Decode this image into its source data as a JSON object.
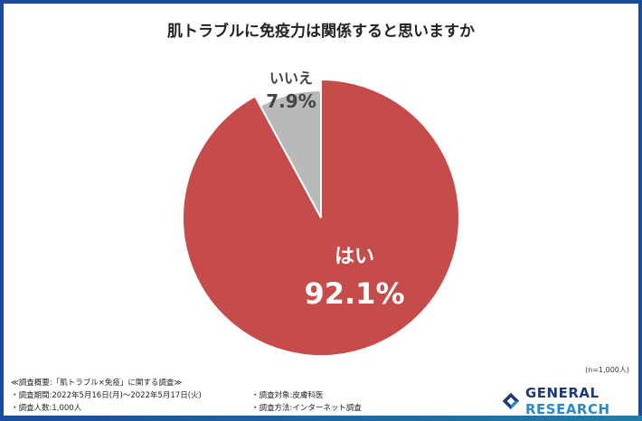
{
  "title": "肌トラブルに免疫力は関係すると思いますか",
  "chart_data": {
    "type": "pie",
    "title": "肌トラブルに免疫力は関係すると思いますか",
    "slices": [
      {
        "label": "はい",
        "value": 92.1,
        "display": "92.1%",
        "color": "#c64b4b"
      },
      {
        "label": "いいえ",
        "value": 7.9,
        "display": "7.9%",
        "color": "#b9b9b9"
      }
    ],
    "start": "top, clockwise",
    "note": "(n=1,000人)"
  },
  "footer": {
    "heading": "≪調査概要:「肌トラブル×免疫」に関する調査≫",
    "period": "・調査期間:2022年5月16日(月)～2022年5月17日(火)",
    "count": "・調査人数:1,000人",
    "target": "・調査対象:皮膚科医",
    "method": "・調査方法:インターネット調査"
  },
  "logo": {
    "word1": "GENERAL",
    "word2": "RESEARCH"
  },
  "colors": {
    "frame": "#1a4c9c"
  }
}
